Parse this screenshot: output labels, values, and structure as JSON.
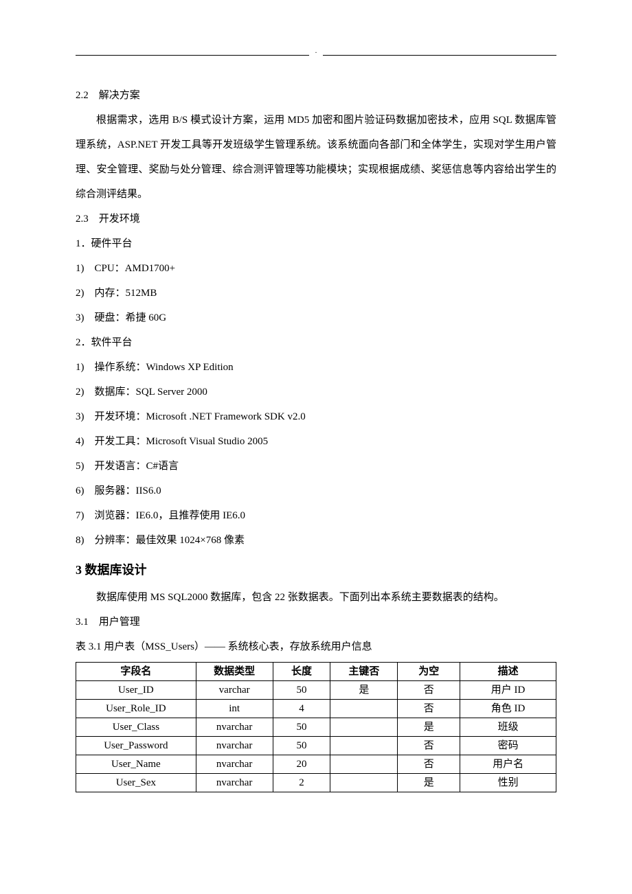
{
  "section22": {
    "heading": "2.2　解决方案",
    "body": "根据需求，选用 B/S 模式设计方案，运用 MD5 加密和图片验证码数据加密技术，应用 SQL 数据库管理系统，ASP.NET 开发工具等开发班级学生管理系统。该系统面向各部门和全体学生，实现对学生用户管理、安全管理、奖励与处分管理、综合测评管理等功能模块；实现根据成绩、奖惩信息等内容给出学生的综合测评结果。"
  },
  "section23": {
    "heading": "2.3　开发环境",
    "hw_title": "1．硬件平台",
    "hw_items": [
      "1)　CPU：AMD1700+",
      "2)　内存：512MB",
      "3)　硬盘：希捷 60G"
    ],
    "sw_title": "2．软件平台",
    "sw_items": [
      "1)　操作系统：Windows XP Edition",
      "2)　数据库：SQL Server 2000",
      "3)　开发环境：Microsoft .NET Framework SDK v2.0",
      "4)　开发工具：Microsoft Visual Studio 2005",
      "5)　开发语言：C#语言",
      "6)　服务器：IIS6.0",
      "7)　浏览器：IE6.0，且推荐使用 IE6.0",
      "8)　分辨率：最佳效果 1024×768 像素"
    ]
  },
  "section3": {
    "heading": "3  数据库设计",
    "intro": "数据库使用 MS SQL2000 数据库，包含 22 张数据表。下面列出本系统主要数据表的结构。"
  },
  "section31": {
    "heading": "3.1　用户管理",
    "table_caption": "表 3.1  用户表（MSS_Users）—— 系统核心表，存放系统用户信息"
  },
  "table": {
    "columns": [
      "字段名",
      "数据类型",
      "长度",
      "主键否",
      "为空",
      "描述"
    ],
    "rows": [
      [
        "User_ID",
        "varchar",
        "50",
        "是",
        "否",
        "用户 ID"
      ],
      [
        "User_Role_ID",
        "int",
        "4",
        "",
        "否",
        "角色 ID"
      ],
      [
        "User_Class",
        "nvarchar",
        "50",
        "",
        "是",
        "班级"
      ],
      [
        "User_Password",
        "nvarchar",
        "50",
        "",
        "否",
        "密码"
      ],
      [
        "User_Name",
        "nvarchar",
        "20",
        "",
        "否",
        "用户名"
      ],
      [
        "User_Sex",
        "nvarchar",
        "2",
        "",
        "是",
        "性别"
      ]
    ]
  }
}
